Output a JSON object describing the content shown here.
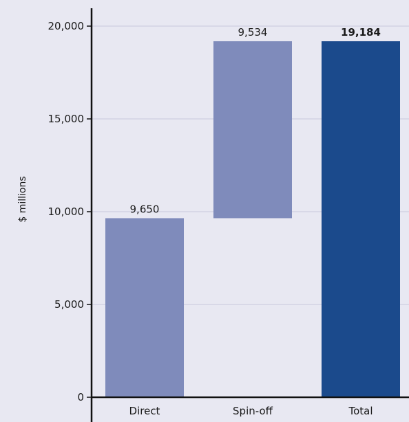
{
  "chart_data": {
    "type": "bar",
    "subtype": "waterfall",
    "categories": [
      "Direct",
      "Spin-off",
      "Total"
    ],
    "values": [
      9650,
      9534,
      19184
    ],
    "bar_bases": [
      0,
      9650,
      0
    ],
    "data_labels": [
      "9,650",
      "9,534",
      "19,184"
    ],
    "total_label_bold": true,
    "ylabel": "$ millions",
    "xlabel": "",
    "ylim": [
      0,
      20000
    ],
    "yticks": [
      0,
      5000,
      10000,
      15000,
      20000
    ],
    "ytick_labels": [
      "0",
      "5,000",
      "10,000",
      "15,000",
      "20,000"
    ],
    "grid": true,
    "colors": {
      "step": "#7f8bbb",
      "total": "#1b4a8c",
      "grid": "#c7c7dc",
      "axis": "#111111",
      "background": "#e8e8f2"
    }
  }
}
